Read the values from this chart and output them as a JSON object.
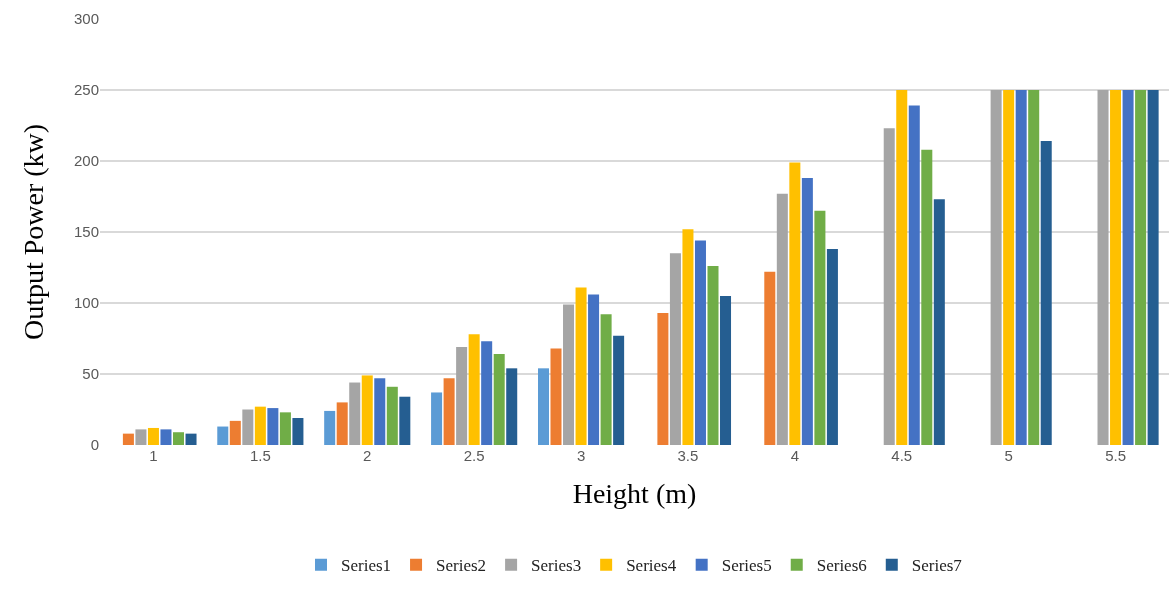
{
  "chart_data": {
    "type": "bar",
    "xlabel": "Height (m)",
    "ylabel": "Output Power (kw)",
    "categories": [
      "1",
      "1.5",
      "2",
      "2.5",
      "3",
      "3.5",
      "4",
      "4.5",
      "5",
      "5.5"
    ],
    "series": [
      {
        "name": "Series1",
        "color": "#5b9bd5",
        "values": [
          null,
          13,
          24,
          37,
          54,
          null,
          null,
          null,
          null,
          null
        ]
      },
      {
        "name": "Series2",
        "color": "#ed7d31",
        "values": [
          8,
          17,
          30,
          47,
          68,
          93,
          122,
          null,
          null,
          null
        ]
      },
      {
        "name": "Series3",
        "color": "#a5a5a5",
        "values": [
          11,
          25,
          44,
          69,
          99,
          135,
          177,
          223,
          250,
          250
        ]
      },
      {
        "name": "Series4",
        "color": "#ffc000",
        "values": [
          12,
          27,
          49,
          78,
          111,
          152,
          199,
          250,
          250,
          250
        ]
      },
      {
        "name": "Series5",
        "color": "#4472c4",
        "values": [
          11,
          26,
          47,
          73,
          106,
          144,
          188,
          239,
          250,
          250
        ]
      },
      {
        "name": "Series6",
        "color": "#70ad47",
        "values": [
          9,
          23,
          41,
          64,
          92,
          126,
          165,
          208,
          250,
          250
        ]
      },
      {
        "name": "Series7",
        "color": "#255e91",
        "values": [
          8,
          19,
          34,
          54,
          77,
          105,
          138,
          173,
          214,
          250
        ]
      }
    ],
    "ylim": [
      0,
      300
    ],
    "yticks": [
      0,
      50,
      100,
      150,
      200,
      250,
      300
    ],
    "grid": "y",
    "legend": "bottom"
  }
}
